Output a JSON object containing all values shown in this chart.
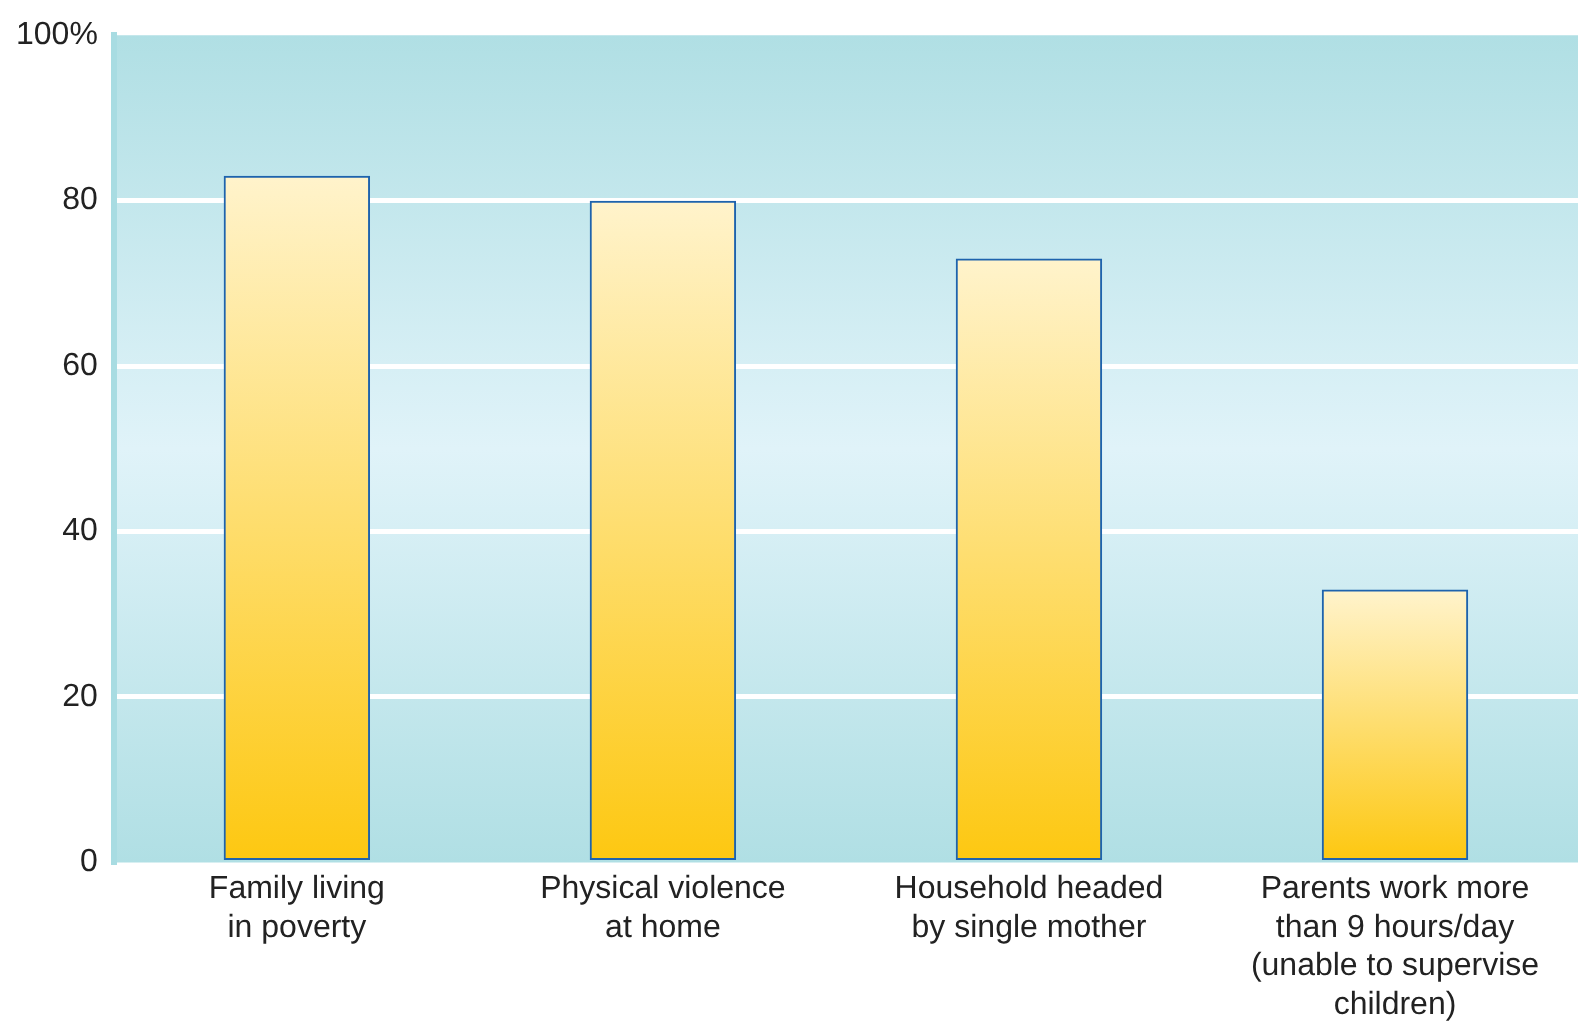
{
  "chart_data": {
    "type": "bar",
    "categories": [
      "Family living\nin poverty",
      "Physical violence\nat home",
      "Household headed\nby single mother",
      "Parents work more\nthan 9 hours/day\n(unable to supervise\nchildren)"
    ],
    "values": [
      83,
      80,
      73,
      33
    ],
    "color": "#fdc812",
    "ylim": [
      0,
      100
    ],
    "yticks": [
      0,
      20,
      40,
      60,
      80,
      {
        "value": 100,
        "label": "100%"
      }
    ],
    "grid": "y"
  }
}
